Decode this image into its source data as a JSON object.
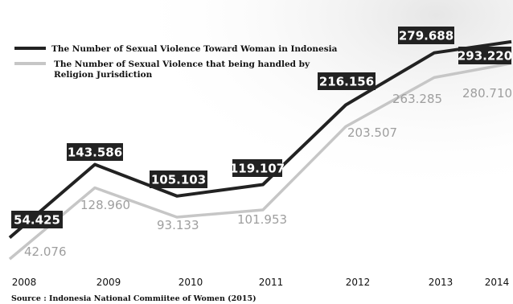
{
  "chart_data": {
    "type": "line",
    "x": [
      "2008",
      "2009",
      "2010",
      "2011",
      "2012",
      "2013",
      "2014"
    ],
    "series": [
      {
        "name": "The Number of Sexual Violence Toward Woman in Indonesia",
        "values": [
          54425,
          143586,
          105103,
          119107,
          216156,
          279688,
          293220
        ],
        "labels": [
          "54.425",
          "143.586",
          "105.103",
          "119.107",
          "216.156",
          "279.688",
          "293.220"
        ],
        "color": "#222222"
      },
      {
        "name": "The Number of Sexual Violence that being handled by Religion Jurisdiction",
        "values": [
          42076,
          128960,
          93133,
          101953,
          203507,
          263285,
          280710
        ],
        "labels": [
          "42.076",
          "128.960",
          "93.133",
          "101.953",
          "203.507",
          "263.285",
          "280.710"
        ],
        "color": "#c6c6c6"
      }
    ],
    "legend_position": "top-left",
    "grid": false
  },
  "source": "Source : Indonesia National Commiitee of Women (2015)"
}
